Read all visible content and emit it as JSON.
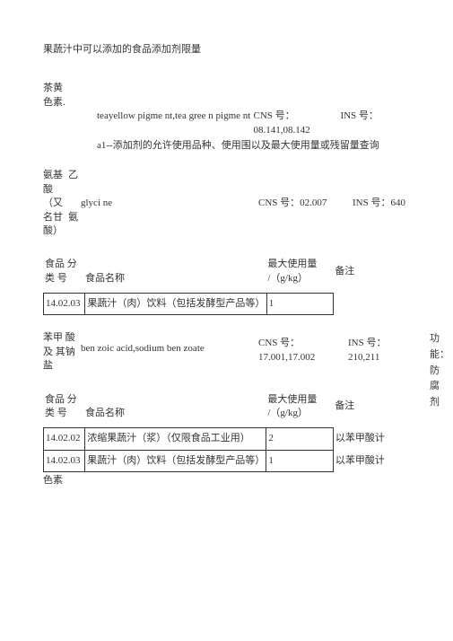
{
  "doc": {
    "title": "果蔬汁中可以添加的食品添加剂限量"
  },
  "sec1": {
    "line1a": "茶黄",
    "line1b": "色素.",
    "english": "teayellow pigme nt,tea gree n pigme nt",
    "cns_label": "CNS 号：",
    "cns_value": "08.141,08.142",
    "ins_label": "INS 号：",
    "footnote": "a1--添加剂的允许使用品种、使用围以及最大使用量或残留量查询"
  },
  "sec2": {
    "l1": "氨基",
    "l1b": "乙",
    "l2": "酸",
    "l3a": "（又",
    "name": "glyci ne",
    "cns": "CNS 号：02.007",
    "ins": "INS 号：640",
    "l4": "名甘",
    "l4b": "氨",
    "l5": "酸）"
  },
  "tbl_hdr": {
    "cat1": "食品",
    "cat2": "分",
    "cat3": "类",
    "cat4": "号",
    "name": "食品名称",
    "max1": "最大使用量",
    "max2": "/（g/kg）",
    "note": "备注"
  },
  "t1": {
    "rows": [
      {
        "cat": "14.02.03",
        "name": "果蔬汁（肉）饮料（包括发酵型产品等）",
        "max": "1",
        "note": ""
      }
    ]
  },
  "sec3": {
    "l1": "苯甲",
    "l1b": "酸",
    "l2": "及",
    "l2b": "其钠",
    "name": "ben zoic acid,sodium ben zoate",
    "l3": "盐",
    "cns_label": "CNS 号：",
    "cns_value": "17.001,17.002",
    "ins_label": "INS 号：",
    "ins_value": "210,211",
    "side": "功能：防腐剂"
  },
  "t2": {
    "rows": [
      {
        "cat": "14.02.02",
        "name": "浓缩果蔬汁（浆）（仅限食品工业用）",
        "max": "2",
        "note": "以苯甲酸计"
      },
      {
        "cat": "14.02.03",
        "name": "果蔬汁（肉）饮料（包括发酵型产品等）",
        "max": "1",
        "note": "以苯甲酸计"
      }
    ]
  },
  "tail": {
    "txt": "色素"
  }
}
